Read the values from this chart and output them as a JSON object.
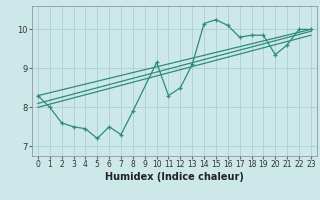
{
  "xlabel": "Humidex (Indice chaleur)",
  "ylabel": "",
  "bg_color": "#cce8e8",
  "line_color": "#2e8b7a",
  "grid_color": "#aed4d4",
  "xlim": [
    -0.5,
    23.5
  ],
  "ylim": [
    6.75,
    10.6
  ],
  "yticks": [
    7,
    8,
    9,
    10
  ],
  "xticks": [
    0,
    1,
    2,
    3,
    4,
    5,
    6,
    7,
    8,
    9,
    10,
    11,
    12,
    13,
    14,
    15,
    16,
    17,
    18,
    19,
    20,
    21,
    22,
    23
  ],
  "series1_x": [
    0,
    1,
    2,
    3,
    4,
    5,
    6,
    7,
    8,
    10,
    11,
    12,
    13,
    14,
    15,
    16,
    17,
    18,
    19,
    20,
    21,
    22,
    23
  ],
  "series1_y": [
    8.3,
    8.0,
    7.6,
    7.5,
    7.45,
    7.2,
    7.5,
    7.3,
    7.9,
    9.15,
    8.3,
    8.5,
    9.1,
    10.15,
    10.25,
    10.1,
    9.8,
    9.85,
    9.85,
    9.35,
    9.6,
    10.0,
    10.0
  ],
  "series2_x": [
    0,
    23
  ],
  "series2_y": [
    8.3,
    10.0
  ],
  "series3_x": [
    0,
    23
  ],
  "series3_y": [
    8.1,
    9.95
  ],
  "series4_x": [
    0,
    23
  ],
  "series4_y": [
    8.0,
    9.85
  ]
}
